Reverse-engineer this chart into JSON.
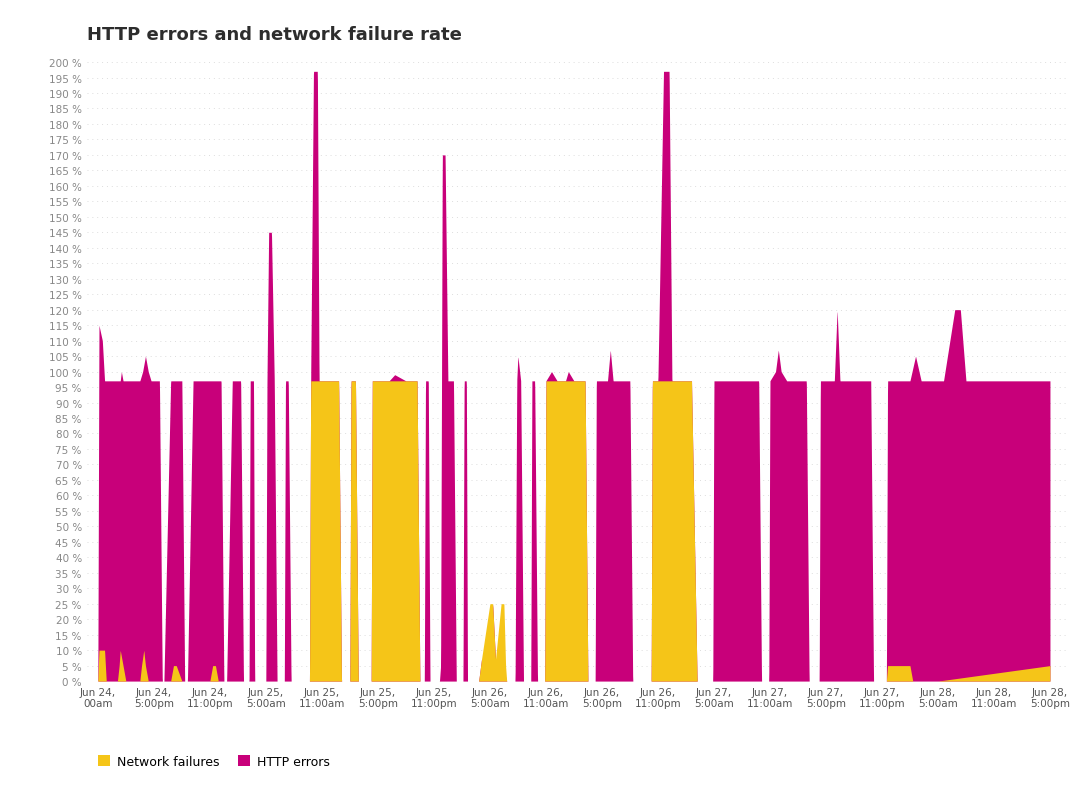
{
  "title": "HTTP errors and network failure rate",
  "ylim": [
    0,
    202
  ],
  "yticks": [
    0,
    5,
    10,
    15,
    20,
    25,
    30,
    35,
    40,
    45,
    50,
    55,
    60,
    65,
    70,
    75,
    80,
    85,
    90,
    95,
    100,
    105,
    110,
    115,
    120,
    125,
    130,
    135,
    140,
    145,
    150,
    155,
    160,
    165,
    170,
    175,
    180,
    185,
    190,
    195,
    200
  ],
  "color_network": "#F5C518",
  "color_http": "#C8007A",
  "legend_network": "Network failures",
  "legend_http": "HTTP errors",
  "background": "#ffffff",
  "x_labels": [
    "Jun 24,\n00am",
    "Jun 24,\n5:00pm",
    "Jun 24,\n11:00pm",
    "Jun 25,\n5:00am",
    "Jun 25,\n11:00am",
    "Jun 25,\n5:00pm",
    "Jun 25,\n11:00pm",
    "Jun 26,\n5:00am",
    "Jun 26,\n11:00am",
    "Jun 26,\n5:00pm",
    "Jun 26,\n11:00pm",
    "Jun 27,\n5:00am",
    "Jun 27,\n11:00am",
    "Jun 27,\n5:00pm",
    "Jun 27,\n11:00pm",
    "Jun 28,\n5:00am",
    "Jun 28,\n11:00am",
    "Jun 28,\n5:00pm"
  ],
  "grid_color": "#dddddd",
  "title_color": "#2d2d2d",
  "tick_color": "#888888",
  "xtick_color": "#555555"
}
